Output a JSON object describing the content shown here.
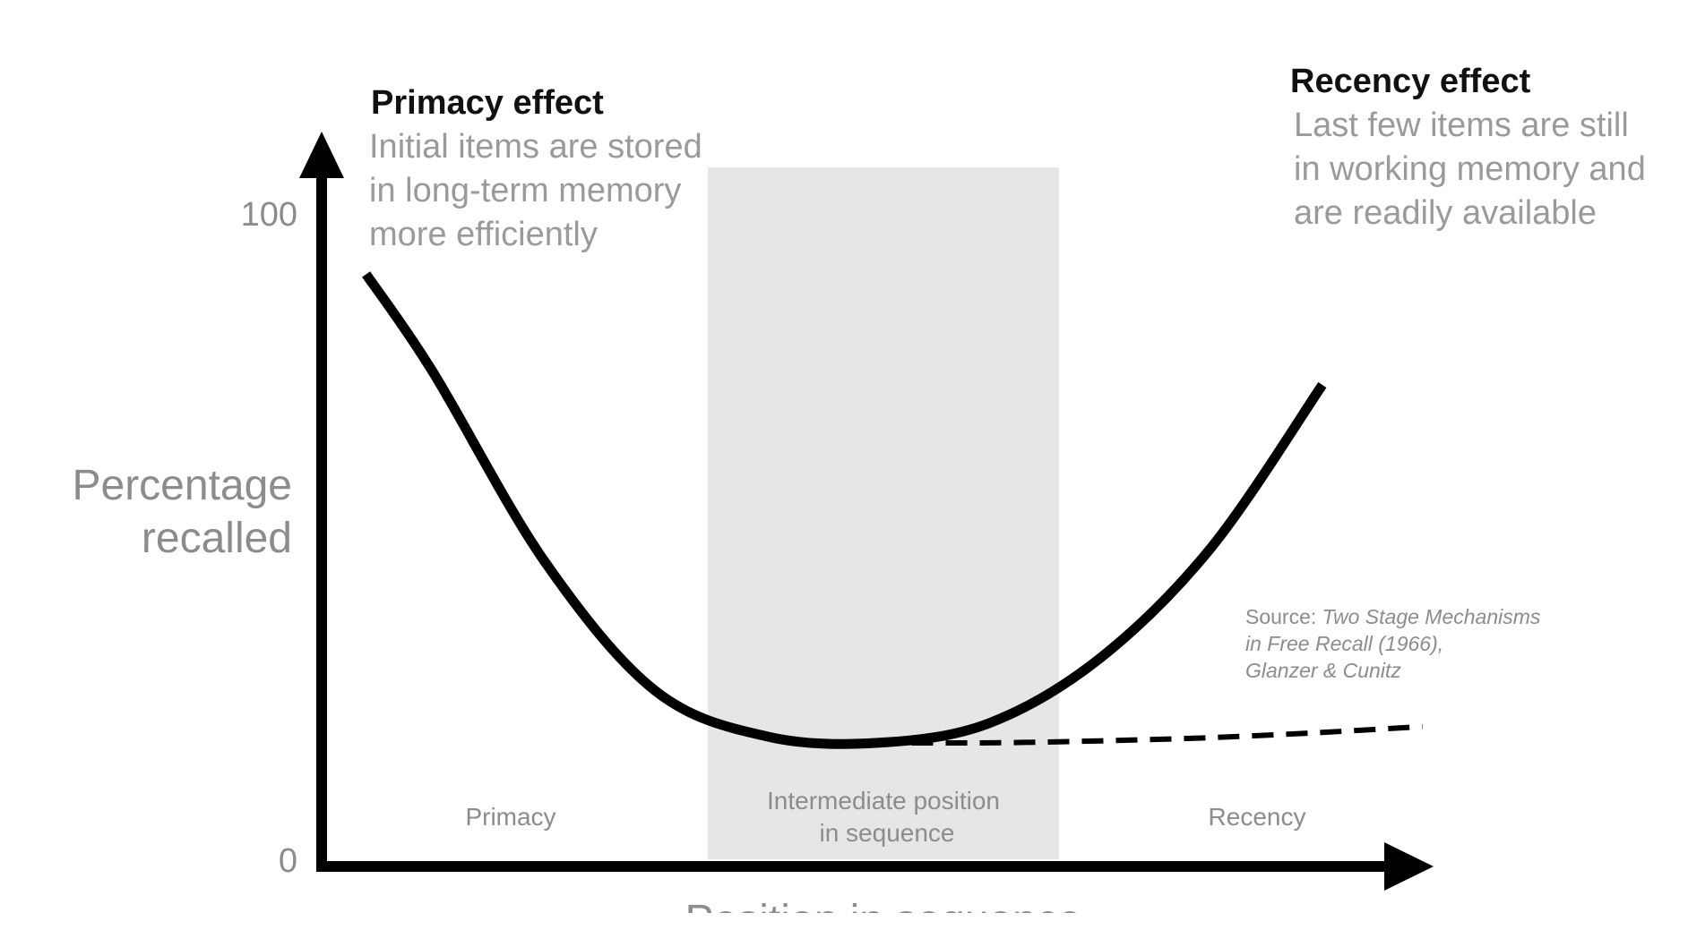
{
  "chart_data": {
    "type": "line",
    "xlabel": "Position in sequence",
    "ylabel_lines": [
      "Percentage",
      "recalled"
    ],
    "y_ticks": [
      "0",
      "100"
    ],
    "ylim": [
      0,
      100
    ],
    "series": [
      {
        "style": "solid",
        "x": [
          0.04,
          0.1,
          0.2,
          0.3,
          0.4,
          0.5,
          0.6,
          0.7,
          0.8,
          0.9
        ],
        "y": [
          91,
          76,
          47,
          27,
          20,
          19,
          22,
          32,
          49,
          74
        ]
      },
      {
        "style": "dashed",
        "x": [
          0.5,
          0.6,
          0.7,
          0.8,
          0.9,
          0.99
        ],
        "y": [
          19,
          19,
          19.3,
          19.8,
          20.6,
          21.5
        ]
      }
    ],
    "regions": [
      {
        "label": "Primacy",
        "shaded": false
      },
      {
        "label_lines": [
          "Intermediate position",
          "in sequence"
        ],
        "shaded": true
      },
      {
        "label": "Recency",
        "shaded": false
      }
    ],
    "annotations": {
      "primacy": {
        "title": "Primacy effect",
        "lines": [
          "Initial items are stored",
          "in long-term memory",
          "more efficiently"
        ]
      },
      "recency": {
        "title": "Recency effect",
        "lines": [
          "Last few items are still",
          "in working memory and",
          "are readily available"
        ]
      },
      "source": {
        "prefix": "Source: ",
        "title_line1": "Two Stage Mechanisms",
        "title_line2": "in Free Recall (1966),",
        "authors": "Glanzer & Cunitz"
      }
    },
    "colors": {
      "curve": "#000000",
      "shaded_region": "#e6e6e6",
      "heading": "#111111",
      "muted_text": "#9a9a9a"
    }
  }
}
